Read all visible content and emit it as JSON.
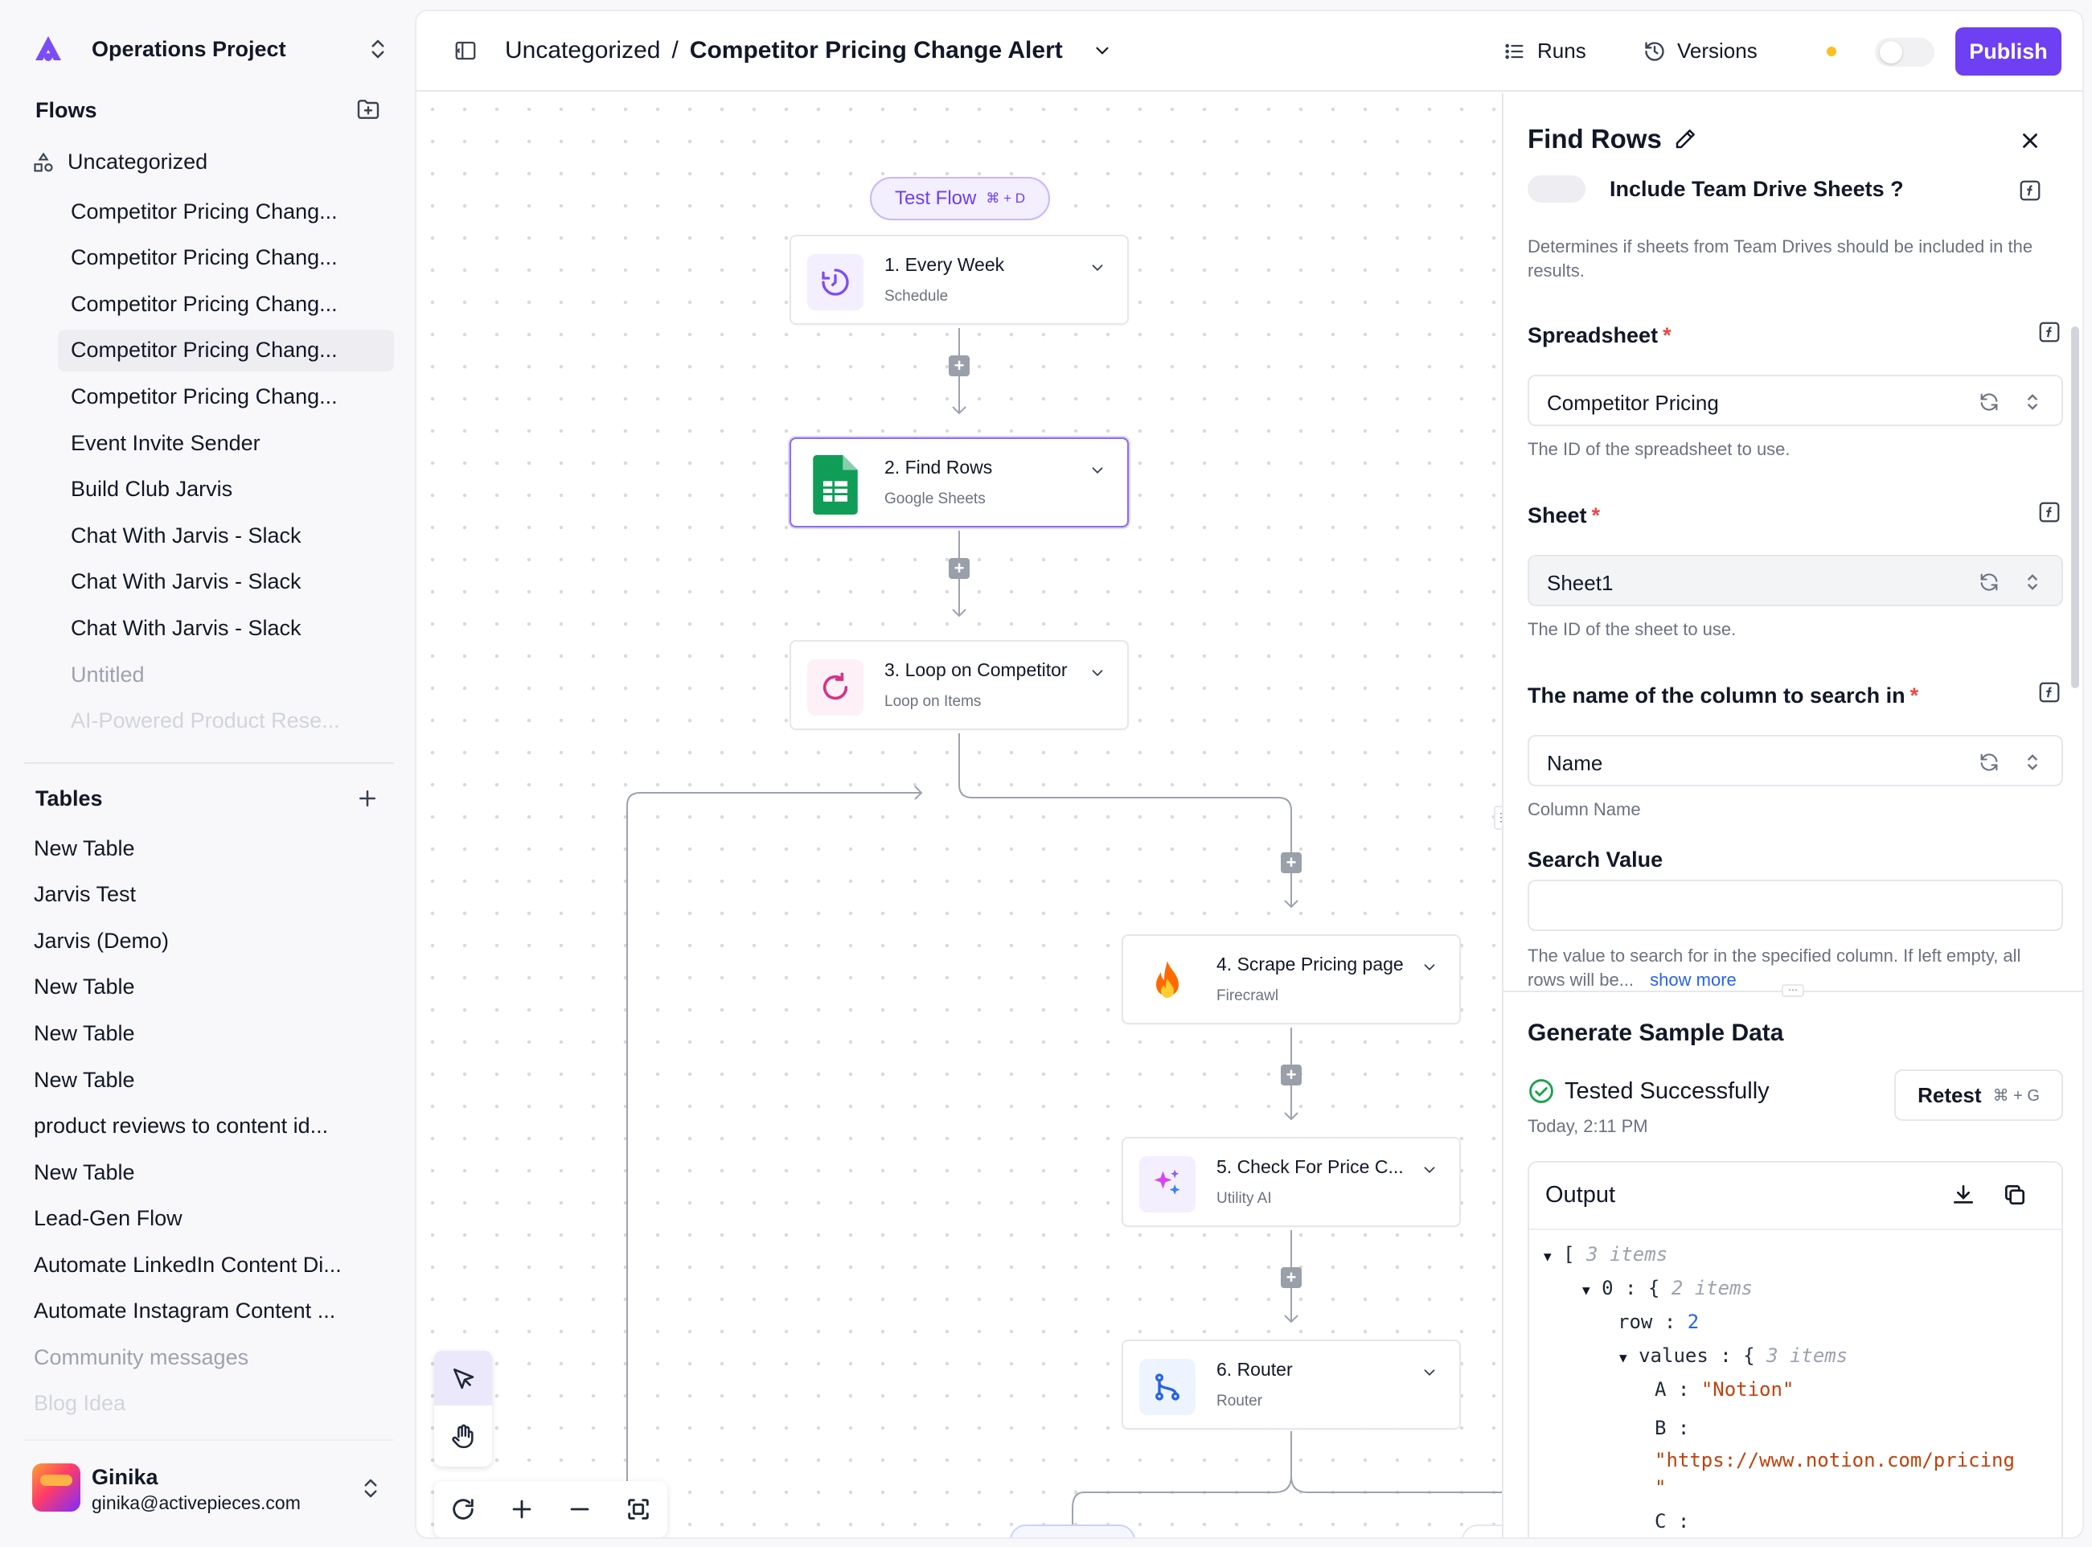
{
  "sidebar": {
    "project": "Operations Project",
    "flows_title": "Flows",
    "folder": "Uncategorized",
    "flows": [
      {
        "label": "Competitor Pricing Chang..."
      },
      {
        "label": "Competitor Pricing Chang..."
      },
      {
        "label": "Competitor Pricing Chang..."
      },
      {
        "label": "Competitor Pricing Chang..."
      },
      {
        "label": "Competitor Pricing Chang..."
      },
      {
        "label": "Event Invite Sender"
      },
      {
        "label": "Build Club Jarvis"
      },
      {
        "label": "Chat With Jarvis - Slack"
      },
      {
        "label": "Chat With Jarvis - Slack"
      },
      {
        "label": "Chat With Jarvis - Slack"
      },
      {
        "label": "Untitled"
      },
      {
        "label": "AI-Powered Product Rese..."
      }
    ],
    "tables_title": "Tables",
    "tables": [
      {
        "label": "New Table"
      },
      {
        "label": "Jarvis Test"
      },
      {
        "label": "Jarvis (Demo)"
      },
      {
        "label": "New Table"
      },
      {
        "label": "New Table"
      },
      {
        "label": "New Table"
      },
      {
        "label": "product reviews to content id..."
      },
      {
        "label": "New Table"
      },
      {
        "label": "Lead-Gen Flow"
      },
      {
        "label": "Automate LinkedIn Content Di..."
      },
      {
        "label": "Automate Instagram Content ..."
      },
      {
        "label": "Community messages"
      },
      {
        "label": "Blog Idea"
      }
    ],
    "user": {
      "name": "Ginika",
      "email": "ginika@activepieces.com"
    }
  },
  "topbar": {
    "folder": "Uncategorized",
    "separator": "/",
    "flow_name": "Competitor Pricing Change Alert",
    "runs": "Runs",
    "versions": "Versions",
    "publish": "Publish"
  },
  "canvas": {
    "test_flow": "Test Flow",
    "test_flow_shortcut": "⌘ + D",
    "nodes": [
      {
        "title": "1. Every Week",
        "subtitle": "Schedule",
        "icon": "clock-icon"
      },
      {
        "title": "2. Find Rows",
        "subtitle": "Google Sheets",
        "icon": "google-sheets-icon"
      },
      {
        "title": "3. Loop on Competitor",
        "subtitle": "Loop on Items",
        "icon": "loop-icon"
      },
      {
        "title": "4. Scrape Pricing page",
        "subtitle": "Firecrawl",
        "icon": "fire-icon"
      },
      {
        "title": "5. Check For Price C...",
        "subtitle": "Utility AI",
        "icon": "sparkle-icon"
      },
      {
        "title": "6. Router",
        "subtitle": "Router",
        "icon": "router-icon"
      }
    ]
  },
  "panel": {
    "title": "Find Rows",
    "cut_label": "Include Team Drive Sheets ?",
    "team_drive_help": "Determines if sheets from Team Drives should be included in the results.",
    "spreadsheet_label": "Spreadsheet",
    "spreadsheet_value": "Competitor Pricing",
    "spreadsheet_help": "The ID of the spreadsheet to use.",
    "sheet_label": "Sheet",
    "sheet_value": "Sheet1",
    "sheet_help": "The ID of the sheet to use.",
    "column_label": "The name of the column to search in",
    "column_value": "Name",
    "column_help": "Column Name",
    "search_label": "Search Value",
    "search_value": "",
    "search_help": "The value to search for in the specified column. If left empty, all rows will be...",
    "show_more": "show more",
    "required_mark": "*",
    "sample_title": "Generate Sample Data",
    "tested": "Tested Successfully",
    "tested_time": "Today, 2:11 PM",
    "retest": "Retest",
    "retest_shortcut": "⌘ + G",
    "output_title": "Output",
    "json": {
      "root_count": "3 items",
      "item0_key": "0",
      "item0_count": "2 items",
      "row_key": "row",
      "row_value": "2",
      "values_key": "values",
      "values_count": "3 items",
      "a_key": "A",
      "a_value": "\"Notion\"",
      "b_key": "B",
      "b_value": "\"https://www.notion.com/pricing",
      "b_value_end": "\"",
      "c_key": "C"
    }
  },
  "colors": {
    "accent": "#6e3ff3",
    "required": "#ef4444",
    "success": "#16a34a"
  }
}
